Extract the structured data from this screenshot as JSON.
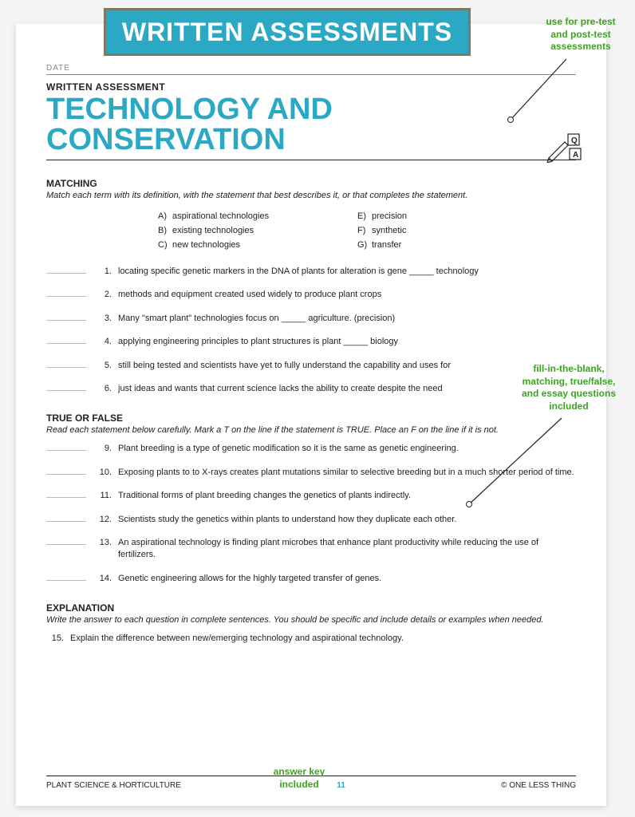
{
  "banner": {
    "text": "WRITTEN ASSESSMENTS"
  },
  "annotations": {
    "top": {
      "line1": "use for pre-test",
      "line2": "and post-test",
      "line3": "assessments"
    },
    "mid": {
      "line1": "fill-in-the-blank,",
      "line2": "matching, true/false,",
      "line3": "and essay questions",
      "line4": "included"
    },
    "bottom": {
      "line1": "answer key",
      "line2": "included"
    }
  },
  "page": {
    "date_label": "DATE",
    "assessment_label": "WRITTEN ASSESSMENT",
    "title": "TECHNOLOGY AND CONSERVATION",
    "matching": {
      "head": "MATCHING",
      "sub": "Match each term with its definition, with the statement that best describes it, or that completes the statement.",
      "terms_left": [
        {
          "letter": "A)",
          "text": "aspirational technologies"
        },
        {
          "letter": "B)",
          "text": "existing technologies"
        },
        {
          "letter": "C)",
          "text": "new technologies"
        }
      ],
      "terms_right": [
        {
          "letter": "E)",
          "text": "precision"
        },
        {
          "letter": "F)",
          "text": "synthetic"
        },
        {
          "letter": "G)",
          "text": "transfer"
        }
      ],
      "questions": [
        {
          "n": "1.",
          "t": "locating specific genetic markers in the DNA of plants for alteration is gene _____ technology"
        },
        {
          "n": "2.",
          "t": "methods and equipment created used widely to produce plant crops"
        },
        {
          "n": "3.",
          "t": "Many \"smart plant\" technologies focus on _____ agriculture. (precision)"
        },
        {
          "n": "4.",
          "t": "applying engineering principles to plant structures is plant _____ biology"
        },
        {
          "n": "5.",
          "t": "still being tested and scientists have yet to fully understand the capability and uses for"
        },
        {
          "n": "6.",
          "t": "just ideas and wants that current science lacks the ability to create despite the need"
        }
      ]
    },
    "tf": {
      "head": "TRUE OR FALSE",
      "sub": "Read each statement below carefully. Mark a T on the line if the statement is TRUE. Place an F on the line if it is not.",
      "questions": [
        {
          "n": "9.",
          "t": "Plant breeding is a type of genetic modification so it is the same as genetic engineering."
        },
        {
          "n": "10.",
          "t": "Exposing plants to to X-rays creates plant mutations similar to selective breeding but in a much shorter period of time."
        },
        {
          "n": "11.",
          "t": "Traditional forms of plant breeding changes the genetics of plants indirectly."
        },
        {
          "n": "12.",
          "t": "Scientists study the genetics within plants to understand how they duplicate each other."
        },
        {
          "n": "13.",
          "t": "An aspirational technology is finding plant microbes that enhance plant productivity while reducing the use of fertilizers."
        },
        {
          "n": "14.",
          "t": "Genetic engineering allows for the highly targeted transfer of genes."
        }
      ]
    },
    "explanation": {
      "head": "EXPLANATION",
      "sub": "Write the answer to each question in complete sentences. You should be specific and include details or examples when needed.",
      "questions": [
        {
          "n": "15.",
          "t": "Explain the difference between new/emerging technology  and aspirational technology."
        }
      ]
    },
    "footer": {
      "left": "PLANT SCIENCE & HORTICULTURE",
      "page": "11",
      "right": "© ONE LESS THING"
    }
  },
  "colors": {
    "accent": "#2ba8c4",
    "annotation": "#3aa51f",
    "banner_border": "#7a7a65"
  }
}
